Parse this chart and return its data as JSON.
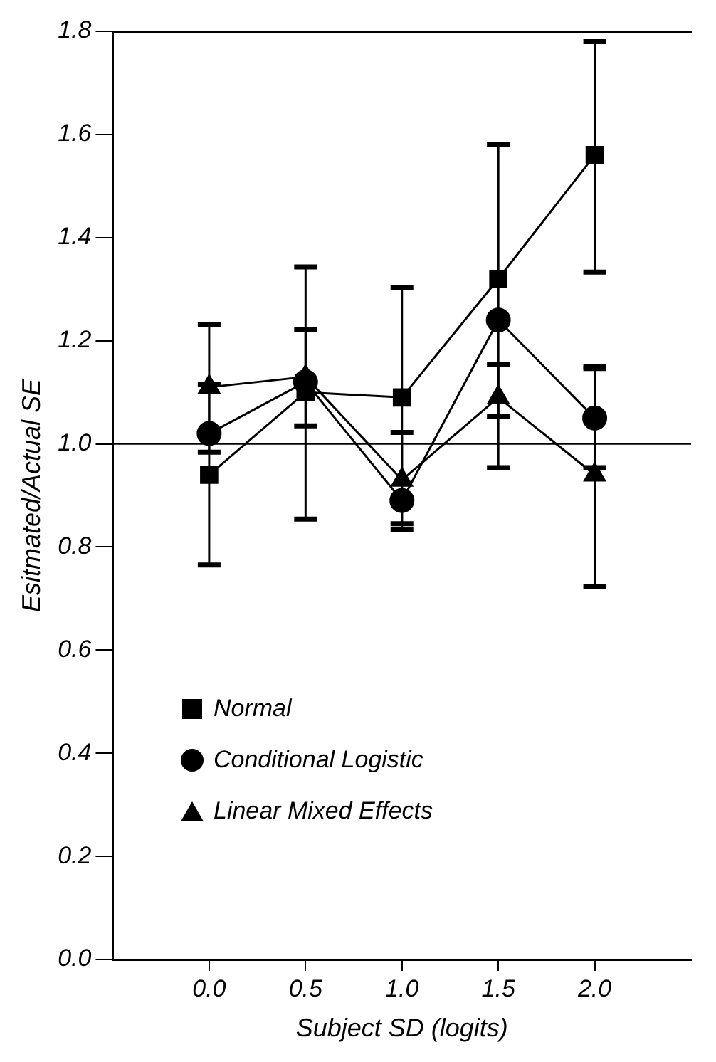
{
  "chart_data": {
    "type": "line",
    "xlabel": "Subject SD (logits)",
    "ylabel": "Esitmated/Actual SE",
    "x": [
      0,
      0.5,
      1,
      1.5,
      2
    ],
    "xlim": [
      -0.5,
      2.5
    ],
    "xticks": [
      {
        "value": 0,
        "label": "0.0"
      },
      {
        "value": 0.5,
        "label": "0.5"
      },
      {
        "value": 1,
        "label": "1.0"
      },
      {
        "value": 1.5,
        "label": "1.5"
      },
      {
        "value": 2,
        "label": "2.0"
      }
    ],
    "ylim": [
      0,
      1.8
    ],
    "yticks": [
      {
        "value": 0,
        "label": "0.0"
      },
      {
        "value": 0.2,
        "label": "0.2"
      },
      {
        "value": 0.4,
        "label": "0.4"
      },
      {
        "value": 0.6,
        "label": "0.6"
      },
      {
        "value": 0.8,
        "label": "0.8"
      },
      {
        "value": 1,
        "label": "1.0"
      },
      {
        "value": 1.2,
        "label": "1.2"
      },
      {
        "value": 1.4,
        "label": "1.4"
      },
      {
        "value": 1.6,
        "label": "1.6"
      },
      {
        "value": 1.8,
        "label": "1.8"
      }
    ],
    "series": [
      {
        "name": "Normal",
        "color": "#000000",
        "marker": "square",
        "values": [
          0.94,
          1.1,
          1.09,
          1.32,
          1.56
        ],
        "errors": [
          [
            0.765,
            1.115
          ],
          [
            0.854,
            1.343
          ],
          [
            0.833,
            1.303
          ],
          [
            1.054,
            1.581
          ],
          [
            1.333,
            1.78
          ]
        ]
      },
      {
        "name": "Conditional Logistic",
        "color": "#000000",
        "marker": "circle",
        "values": [
          1.02,
          1.12,
          0.89,
          1.24,
          1.05
        ],
        "errors": [
          null,
          [
            1.035,
            1.222
          ],
          [
            0.845,
            1.022
          ],
          null,
          [
            0.954,
            1.146
          ]
        ]
      },
      {
        "name": "Linear Mixed Effects",
        "color": "#000000",
        "marker": "triangle",
        "values": [
          1.11,
          1.13,
          0.93,
          1.09,
          0.94
        ],
        "errors": [
          [
            0.984,
            1.232
          ],
          null,
          null,
          [
            0.954,
            1.154
          ],
          [
            0.724,
            1.15
          ]
        ]
      }
    ],
    "ref_lines": [
      {
        "axis": "y",
        "value": 1,
        "color": "#000000"
      }
    ],
    "legend": "bottom left",
    "grid": false,
    "line_style": "solid"
  }
}
